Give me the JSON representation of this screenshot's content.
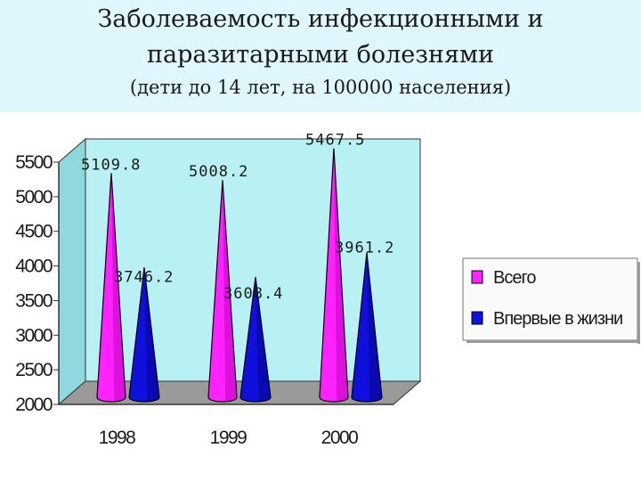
{
  "header": {
    "title_line1": "Заболеваемость инфекционными и",
    "title_line2": "паразитарными болезнями",
    "subtitle": "(дети до 14 лет, на 100000 населения)"
  },
  "colors": {
    "header_bg": "#dff6fd",
    "wall": "#b8f0f4",
    "floor": "#9a9a9a",
    "series_all": "#ff22ff",
    "series_first": "#1010dd"
  },
  "chart_data": {
    "type": "bar",
    "shape": "3d-cone",
    "categories": [
      "1998",
      "1999",
      "2000"
    ],
    "series": [
      {
        "name": "Всего",
        "values": [
          5109.8,
          5008.2,
          5467.5
        ]
      },
      {
        "name": "Впервые в жизни",
        "values": [
          3746.2,
          3608.4,
          3961.2
        ]
      }
    ],
    "data_labels": [
      [
        "5109.8",
        "5008.2",
        "5467.5"
      ],
      [
        "3746.2",
        "3608.4",
        "3961.2"
      ]
    ],
    "yticks": [
      "5500",
      "5000",
      "4500",
      "4000",
      "3500",
      "3000",
      "2500",
      "2000"
    ],
    "ylim": [
      2000,
      5500
    ],
    "legend_position": "right",
    "grid": false
  }
}
